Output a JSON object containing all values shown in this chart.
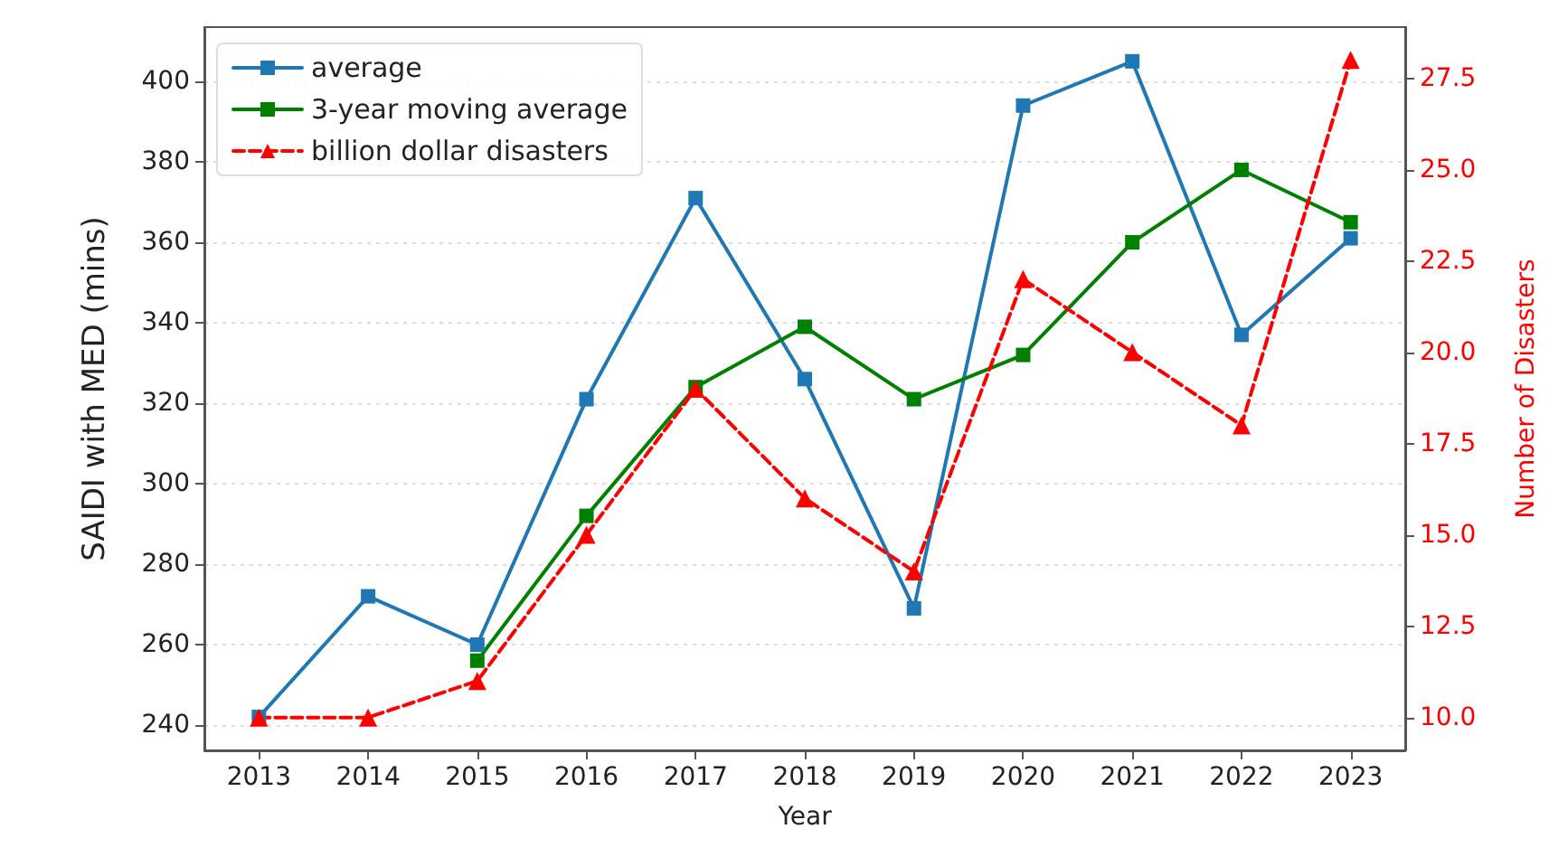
{
  "chart_data": {
    "type": "line",
    "xlabel": "Year",
    "ylabel": "SAIDI with MED (mins)",
    "y2label": "Number of Disasters",
    "categories": [
      "2013",
      "2014",
      "2015",
      "2016",
      "2017",
      "2018",
      "2019",
      "2020",
      "2021",
      "2022",
      "2023"
    ],
    "series": [
      {
        "name": "average",
        "color": "#1f77b4",
        "marker": "square",
        "line_style": "solid",
        "values": [
          242,
          272,
          260,
          321,
          371,
          326,
          269,
          394,
          405,
          337,
          361
        ]
      },
      {
        "name": "3-year moving average",
        "color": "#008000",
        "marker": "square",
        "line_style": "solid",
        "values": [
          null,
          null,
          256,
          292,
          324,
          339,
          321,
          332,
          360,
          378,
          365
        ]
      },
      {
        "name": "billion dollar disasters",
        "color": "#ff0000",
        "marker": "triangle",
        "line_style": "dashed",
        "axis": "y2",
        "values": [
          10,
          10,
          11,
          15,
          19,
          16,
          14,
          22,
          20,
          18,
          28
        ]
      }
    ],
    "ylim": [
      233.7,
      413.5
    ],
    "yticks": [
      240,
      260,
      280,
      300,
      320,
      340,
      360,
      380,
      400
    ],
    "y2lim": [
      9.1,
      28.9
    ],
    "y2ticks": [
      {
        "value": 10,
        "label": "10.0"
      },
      {
        "value": 12.5,
        "label": "12.5"
      },
      {
        "value": 15,
        "label": "15.0"
      },
      {
        "value": 17.5,
        "label": "17.5"
      },
      {
        "value": 20,
        "label": "20.0"
      },
      {
        "value": 22.5,
        "label": "22.5"
      },
      {
        "value": 25,
        "label": "25.0"
      },
      {
        "value": 27.5,
        "label": "27.5"
      }
    ],
    "grid": "y",
    "legend": "top left"
  }
}
